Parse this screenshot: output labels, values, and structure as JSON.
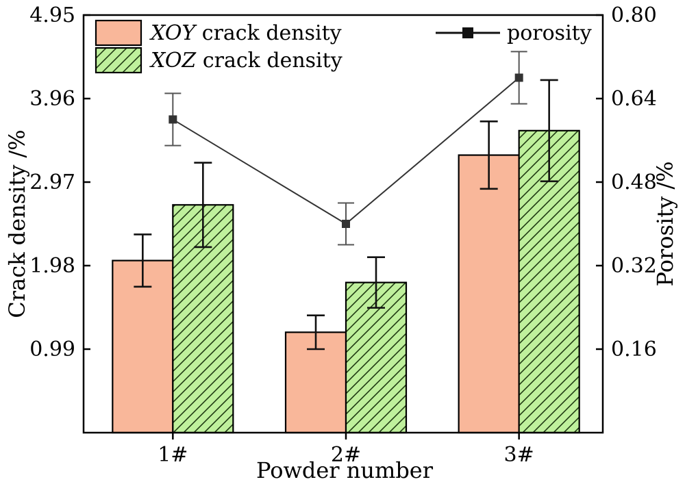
{
  "chart_data": {
    "type": "bar",
    "xlabel": "Powder number",
    "ylabel_left": "Crack density /%",
    "ylabel_right": "Porosity /%",
    "categories": [
      "1#",
      "2#",
      "3#"
    ],
    "ylim_left": [
      0,
      4.95
    ],
    "yticks_left": [
      "0.99",
      "1.98",
      "2.97",
      "3.96",
      "4.95"
    ],
    "ylim_right": [
      0,
      0.8
    ],
    "yticks_right": [
      "0.16",
      "0.32",
      "0.48",
      "0.64",
      "0.80"
    ],
    "series": [
      {
        "name": "crack density",
        "name_italic_prefix": "XOY",
        "kind": "bar",
        "axis": "left",
        "color": "#f9b79a",
        "hatch": false,
        "values": [
          2.04,
          1.19,
          3.29
        ],
        "errors": [
          0.31,
          0.2,
          0.4
        ]
      },
      {
        "name": "crack density",
        "name_italic_prefix": "XOZ",
        "kind": "bar",
        "axis": "left",
        "color": "#bff09c",
        "hatch": true,
        "values": [
          2.7,
          1.78,
          3.58
        ],
        "errors": [
          0.5,
          0.3,
          0.6
        ]
      },
      {
        "name": "porosity",
        "kind": "line",
        "axis": "right",
        "color": "#333333",
        "values": [
          0.6,
          0.4,
          0.68
        ],
        "errors": [
          0.05,
          0.04,
          0.05
        ]
      }
    ],
    "legend": "top",
    "grid": false
  }
}
